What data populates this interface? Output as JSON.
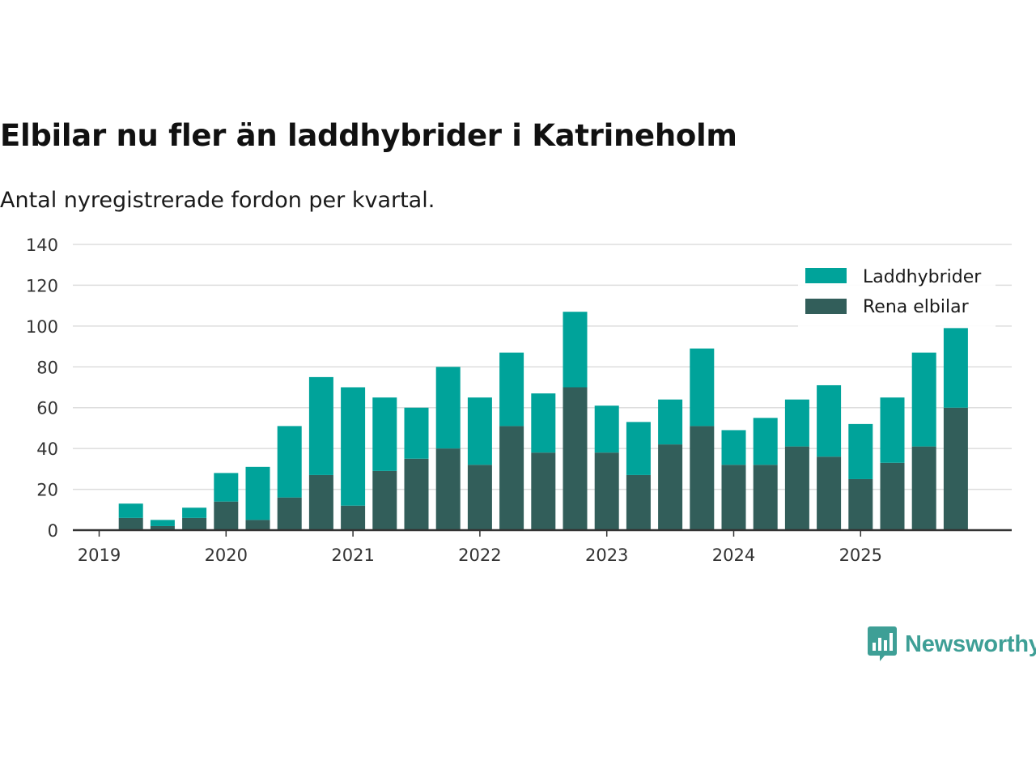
{
  "title": "Elbilar nu fler än laddhybrider i Katrineholm",
  "subtitle": "Antal nyregistrerade fordon per kvartal.",
  "brand": {
    "name": "Newsworthy",
    "icon": "bar-chart-speech-bubble-icon"
  },
  "colors": {
    "laddhybrider": "#00a39a",
    "rena_elbilar": "#325e5a",
    "grid": "#dddddd",
    "axis": "#333333",
    "brand": "#3e9f96"
  },
  "chart_data": {
    "type": "bar",
    "stacked": true,
    "title": "Elbilar nu fler än laddhybrider i Katrineholm",
    "subtitle": "Antal nyregistrerade fordon per kvartal.",
    "xlabel": "",
    "ylabel": "",
    "ylim": [
      0,
      140
    ],
    "yticks": [
      0,
      20,
      40,
      60,
      80,
      100,
      120,
      140
    ],
    "xticks": [
      "2019",
      "2020",
      "2021",
      "2022",
      "2023",
      "2024",
      "2025"
    ],
    "grid": true,
    "legend_position": "top-right",
    "categories": [
      "2019 Q1",
      "2019 Q2",
      "2019 Q3",
      "2019 Q4",
      "2020 Q1",
      "2020 Q2",
      "2020 Q3",
      "2020 Q4",
      "2021 Q1",
      "2021 Q2",
      "2021 Q3",
      "2021 Q4",
      "2022 Q1",
      "2022 Q2",
      "2022 Q3",
      "2022 Q4",
      "2023 Q1",
      "2023 Q2",
      "2023 Q3",
      "2023 Q4",
      "2024 Q1",
      "2024 Q2",
      "2024 Q3",
      "2024 Q4",
      "2025 Q1",
      "2025 Q2",
      "2025 Q3",
      "2025 Q4"
    ],
    "series": [
      {
        "name": "Rena elbilar",
        "color": "#325e5a",
        "values": [
          0,
          6,
          2,
          6,
          14,
          5,
          16,
          27,
          12,
          29,
          35,
          40,
          32,
          51,
          38,
          70,
          38,
          27,
          42,
          51,
          32,
          32,
          41,
          36,
          25,
          33,
          41,
          60
        ]
      },
      {
        "name": "Laddhybrider",
        "color": "#00a39a",
        "values": [
          0,
          7,
          3,
          5,
          14,
          26,
          35,
          48,
          58,
          36,
          25,
          40,
          33,
          36,
          29,
          37,
          23,
          26,
          22,
          38,
          17,
          23,
          23,
          35,
          27,
          32,
          46,
          39
        ]
      }
    ],
    "legend": [
      "Laddhybrider",
      "Rena elbilar"
    ]
  }
}
